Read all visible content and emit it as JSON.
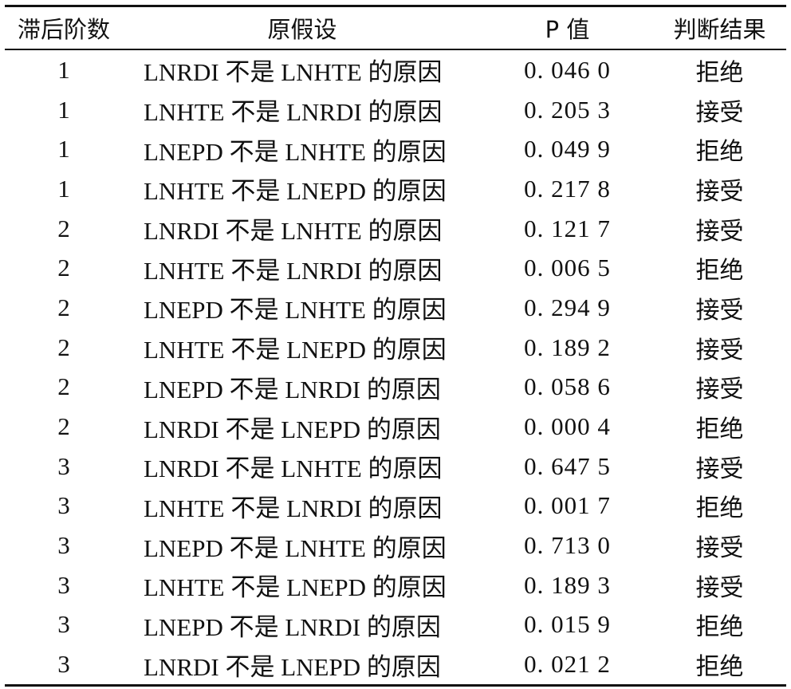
{
  "table": {
    "headers": {
      "lag": "滞后阶数",
      "hypothesis": "原假设",
      "p_value": "P 值",
      "result": "判断结果"
    },
    "rows": [
      {
        "lag": "1",
        "hypothesis": "LNRDI 不是 LNHTE 的原因",
        "p_value": "0. 046 0",
        "result": "拒绝"
      },
      {
        "lag": "1",
        "hypothesis": "LNHTE 不是 LNRDI 的原因",
        "p_value": "0. 205 3",
        "result": "接受"
      },
      {
        "lag": "1",
        "hypothesis": "LNEPD 不是 LNHTE 的原因",
        "p_value": "0. 049 9",
        "result": "拒绝"
      },
      {
        "lag": "1",
        "hypothesis": "LNHTE 不是 LNEPD 的原因",
        "p_value": "0. 217 8",
        "result": "接受"
      },
      {
        "lag": "2",
        "hypothesis": "LNRDI 不是 LNHTE 的原因",
        "p_value": "0. 121 7",
        "result": "接受"
      },
      {
        "lag": "2",
        "hypothesis": "LNHTE 不是 LNRDI 的原因",
        "p_value": "0. 006 5",
        "result": "拒绝"
      },
      {
        "lag": "2",
        "hypothesis": "LNEPD 不是 LNHTE 的原因",
        "p_value": "0. 294 9",
        "result": "接受"
      },
      {
        "lag": "2",
        "hypothesis": "LNHTE 不是 LNEPD 的原因",
        "p_value": "0. 189 2",
        "result": "接受"
      },
      {
        "lag": "2",
        "hypothesis": "LNEPD 不是 LNRDI 的原因",
        "p_value": "0. 058 6",
        "result": "接受"
      },
      {
        "lag": "2",
        "hypothesis": "LNRDI 不是 LNEPD 的原因",
        "p_value": "0. 000 4",
        "result": "拒绝"
      },
      {
        "lag": "3",
        "hypothesis": "LNRDI 不是 LNHTE 的原因",
        "p_value": "0. 647 5",
        "result": "接受"
      },
      {
        "lag": "3",
        "hypothesis": "LNHTE 不是 LNRDI 的原因",
        "p_value": "0. 001 7",
        "result": "拒绝"
      },
      {
        "lag": "3",
        "hypothesis": "LNEPD 不是 LNHTE 的原因",
        "p_value": "0. 713 0",
        "result": "接受"
      },
      {
        "lag": "3",
        "hypothesis": "LNHTE 不是 LNEPD 的原因",
        "p_value": "0. 189 3",
        "result": "接受"
      },
      {
        "lag": "3",
        "hypothesis": "LNEPD 不是 LNRDI 的原因",
        "p_value": "0. 015 9",
        "result": "拒绝"
      },
      {
        "lag": "3",
        "hypothesis": "LNRDI 不是 LNEPD 的原因",
        "p_value": "0. 021 2",
        "result": "拒绝"
      }
    ]
  }
}
